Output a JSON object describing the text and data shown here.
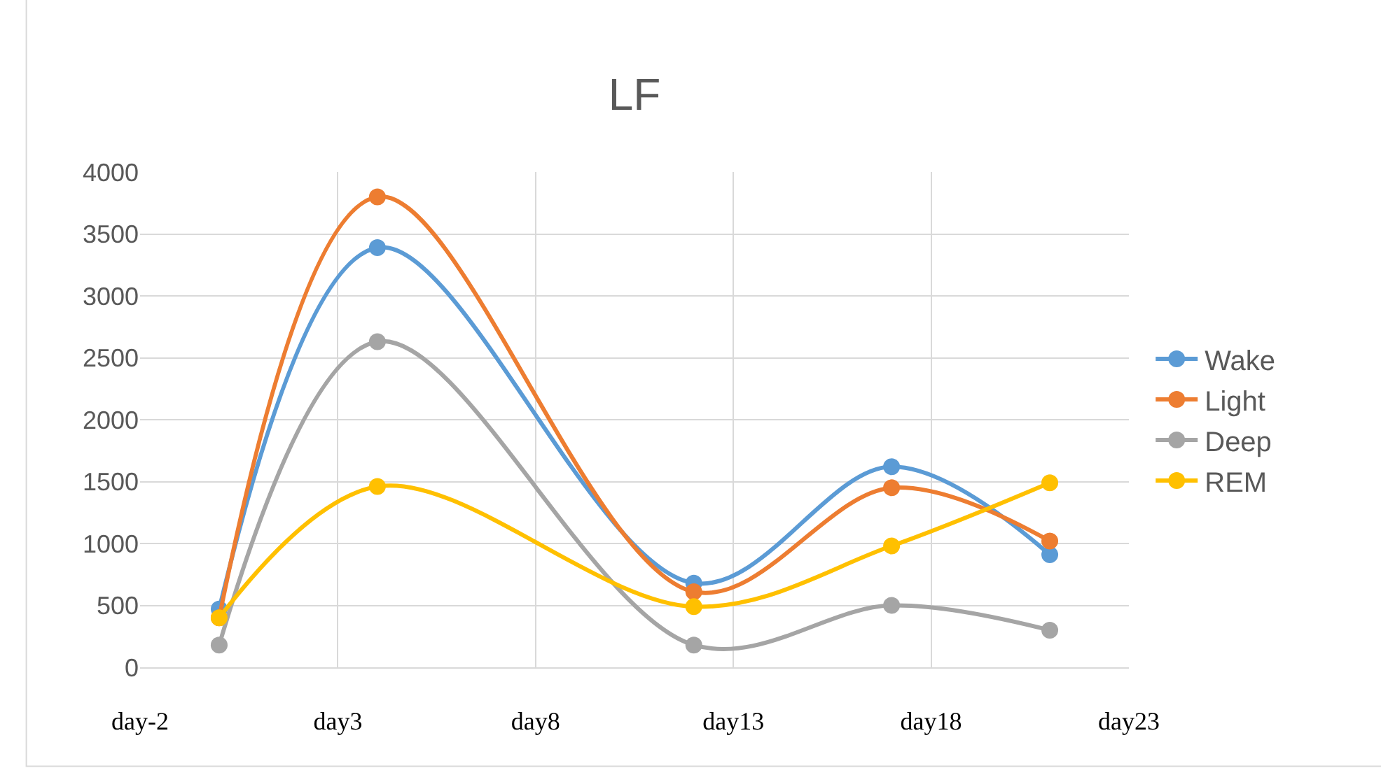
{
  "chart_data": {
    "type": "line",
    "title": "LF",
    "categories": [
      "day-2",
      null,
      null,
      null,
      null,
      "day3",
      null,
      null,
      null,
      null,
      "day8",
      null,
      null,
      null,
      null,
      "day13",
      null,
      null,
      null,
      null,
      "day18",
      null,
      null,
      null,
      null,
      "day23"
    ],
    "series": [
      {
        "name": "Wake",
        "color": "#5b9bd5",
        "values": [
          null,
          null,
          470,
          null,
          null,
          null,
          3390,
          null,
          null,
          null,
          null,
          null,
          null,
          null,
          680,
          null,
          null,
          null,
          null,
          1620,
          null,
          null,
          null,
          910,
          null,
          null
        ]
      },
      {
        "name": "Light",
        "color": "#ed7d31",
        "values": [
          null,
          null,
          400,
          null,
          null,
          null,
          3800,
          null,
          null,
          null,
          null,
          null,
          null,
          null,
          610,
          null,
          null,
          null,
          null,
          1450,
          null,
          null,
          null,
          1020,
          null,
          null
        ]
      },
      {
        "name": "Deep",
        "color": "#a5a5a5",
        "values": [
          null,
          null,
          180,
          null,
          null,
          null,
          2630,
          null,
          null,
          null,
          null,
          null,
          null,
          null,
          180,
          null,
          null,
          null,
          null,
          500,
          null,
          null,
          null,
          300,
          null,
          null
        ]
      },
      {
        "name": "REM",
        "color": "#ffc000",
        "values": [
          null,
          null,
          400,
          null,
          null,
          null,
          1460,
          null,
          null,
          null,
          null,
          null,
          null,
          null,
          490,
          null,
          null,
          null,
          null,
          980,
          null,
          null,
          null,
          1490,
          null,
          null
        ]
      }
    ],
    "ylim": [
      0,
      4000
    ],
    "yticks": [
      0,
      500,
      1000,
      1500,
      2000,
      2500,
      3000,
      3500,
      4000
    ],
    "grid": true,
    "legend": "right",
    "marker": "circle",
    "line_style": "solid"
  }
}
